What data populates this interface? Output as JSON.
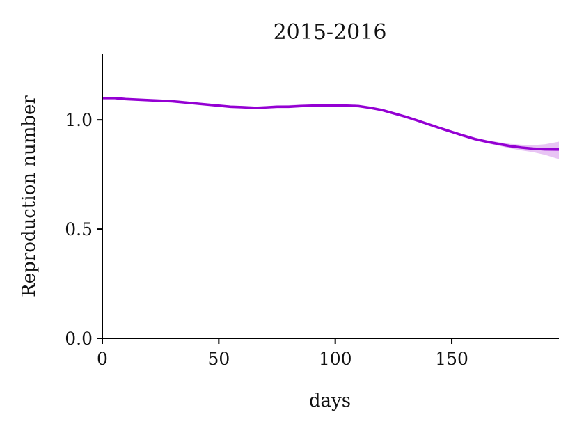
{
  "chart_data": {
    "type": "line",
    "title": "2015-2016",
    "xlabel": "days",
    "ylabel": "Reproduction number",
    "xlim": [
      0,
      196
    ],
    "ylim": [
      0,
      1.3
    ],
    "xticks": [
      0,
      50,
      100,
      150
    ],
    "xtick_labels": [
      "0",
      "50",
      "100",
      "150"
    ],
    "yticks": [
      0,
      0.5,
      1.0
    ],
    "ytick_labels": [
      "0.0",
      "0.5",
      "1.0"
    ],
    "grid": false,
    "legend": "none",
    "series": [
      {
        "color": "#9400d3",
        "band_color": "#e0b0f0",
        "x": [
          0,
          5,
          10,
          20,
          30,
          40,
          50,
          55,
          60,
          66,
          70,
          75,
          80,
          85,
          90,
          95,
          100,
          105,
          110,
          115,
          120,
          125,
          130,
          135,
          140,
          145,
          150,
          155,
          160,
          165,
          170,
          175,
          180,
          185,
          190,
          196
        ],
        "y": [
          1.1,
          1.1,
          1.095,
          1.09,
          1.085,
          1.075,
          1.065,
          1.06,
          1.058,
          1.055,
          1.057,
          1.06,
          1.06,
          1.063,
          1.065,
          1.066,
          1.066,
          1.065,
          1.063,
          1.055,
          1.045,
          1.03,
          1.015,
          0.998,
          0.98,
          0.962,
          0.945,
          0.928,
          0.912,
          0.9,
          0.89,
          0.88,
          0.873,
          0.868,
          0.865,
          0.864
        ],
        "lower": [
          1.095,
          1.095,
          1.09,
          1.085,
          1.08,
          1.07,
          1.06,
          1.055,
          1.053,
          1.05,
          1.052,
          1.055,
          1.055,
          1.058,
          1.06,
          1.061,
          1.061,
          1.06,
          1.058,
          1.05,
          1.04,
          1.025,
          1.01,
          0.993,
          0.975,
          0.957,
          0.94,
          0.922,
          0.905,
          0.893,
          0.882,
          0.87,
          0.86,
          0.852,
          0.84,
          0.82
        ],
        "upper": [
          1.105,
          1.105,
          1.1,
          1.095,
          1.09,
          1.08,
          1.07,
          1.065,
          1.063,
          1.06,
          1.062,
          1.066,
          1.067,
          1.07,
          1.07,
          1.071,
          1.071,
          1.07,
          1.068,
          1.06,
          1.05,
          1.035,
          1.02,
          1.003,
          0.985,
          0.967,
          0.95,
          0.934,
          0.919,
          0.907,
          0.898,
          0.89,
          0.886,
          0.884,
          0.888,
          0.9
        ]
      }
    ]
  }
}
